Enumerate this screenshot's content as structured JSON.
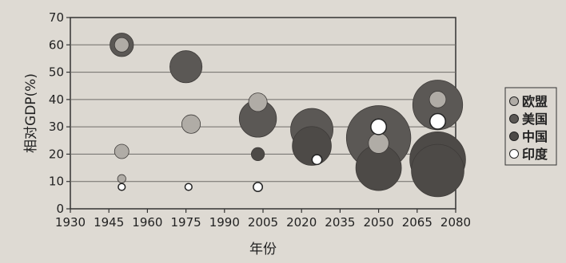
{
  "chart_data": {
    "type": "scatter",
    "subtype": "bubble",
    "xlabel": "年份",
    "ylabel": "相对GDP(%)",
    "xlim": [
      1930,
      2080
    ],
    "ylim": [
      0,
      70
    ],
    "x_ticks": [
      "1930",
      "1945",
      "1960",
      "1975",
      "1990",
      "2005",
      "2020",
      "2035",
      "2050",
      "2065",
      "2080"
    ],
    "y_ticks": [
      "0",
      "10",
      "20",
      "30",
      "40",
      "50",
      "60",
      "70"
    ],
    "grid": {
      "horizontal": true,
      "vertical": false
    },
    "legend_position": "right",
    "colors": {
      "欧盟": "#b0aca6",
      "美国": "#5b5855",
      "中国": "#4d4a47",
      "印度": "#ffffff"
    },
    "series": [
      {
        "name": "欧盟",
        "points": [
          {
            "x": 1950,
            "y": 60,
            "size": 3
          },
          {
            "x": 1950,
            "y": 21,
            "size": 3
          },
          {
            "x": 1950,
            "y": 11,
            "size": 1
          },
          {
            "x": 1977,
            "y": 31,
            "size": 5
          },
          {
            "x": 2003,
            "y": 39,
            "size": 5
          },
          {
            "x": 2050,
            "y": 24,
            "size": 6
          },
          {
            "x": 2073,
            "y": 40,
            "size": 4
          }
        ]
      },
      {
        "name": "美国",
        "points": [
          {
            "x": 1950,
            "y": 60,
            "size": 8
          },
          {
            "x": 1975,
            "y": 52,
            "size": 15
          },
          {
            "x": 2003,
            "y": 33,
            "size": 20
          },
          {
            "x": 2024,
            "y": 29,
            "size": 26
          },
          {
            "x": 2050,
            "y": 26,
            "size": 60
          },
          {
            "x": 2073,
            "y": 38,
            "size": 36
          }
        ]
      },
      {
        "name": "中国",
        "points": [
          {
            "x": 2003,
            "y": 20,
            "size": 2.5
          },
          {
            "x": 2024,
            "y": 23,
            "size": 22
          },
          {
            "x": 2050,
            "y": 15,
            "size": 30
          },
          {
            "x": 2073,
            "y": 14,
            "size": 40
          },
          {
            "x": 2073,
            "y": 18,
            "size": 45
          }
        ]
      },
      {
        "name": "印度",
        "points": [
          {
            "x": 1950,
            "y": 8,
            "size": 0.7
          },
          {
            "x": 1976,
            "y": 8,
            "size": 0.7
          },
          {
            "x": 2003,
            "y": 8,
            "size": 1.2
          },
          {
            "x": 2026,
            "y": 18,
            "size": 1.4
          },
          {
            "x": 2050,
            "y": 30,
            "size": 3.5
          },
          {
            "x": 2073,
            "y": 32,
            "size": 3.5
          }
        ]
      }
    ]
  }
}
